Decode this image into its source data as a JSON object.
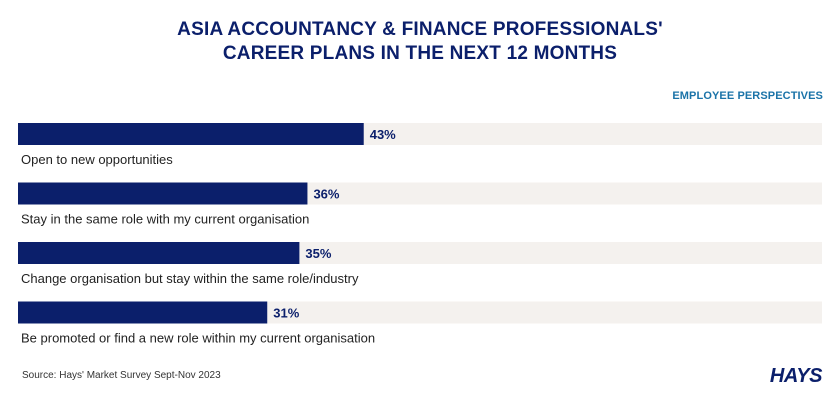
{
  "title_line1": "ASIA ACCOUNTANCY & FINANCE PROFESSIONALS'",
  "title_line2": "CAREER PLANS IN THE NEXT 12 MONTHS",
  "subhead": "EMPLOYEE PERSPECTIVES",
  "source": "Source: Hays' Market Survey Sept-Nov 2023",
  "logo": "HAYS",
  "colors": {
    "bar": "#0b1f6b",
    "track": "#f4f1ee",
    "value_label": "#0b1f6b",
    "category_label": "#222222"
  },
  "chart_data": {
    "type": "bar",
    "orientation": "horizontal",
    "categories": [
      "Open to new opportunities",
      "Stay in the same role with my current organisation",
      "Change organisation but stay within the same role/industry",
      "Be promoted or find a new role within my current organisation"
    ],
    "values": [
      43,
      36,
      35,
      31
    ],
    "value_labels": [
      "43%",
      "36%",
      "35%",
      "31%"
    ],
    "unit": "%",
    "xlim": [
      0,
      100
    ]
  }
}
